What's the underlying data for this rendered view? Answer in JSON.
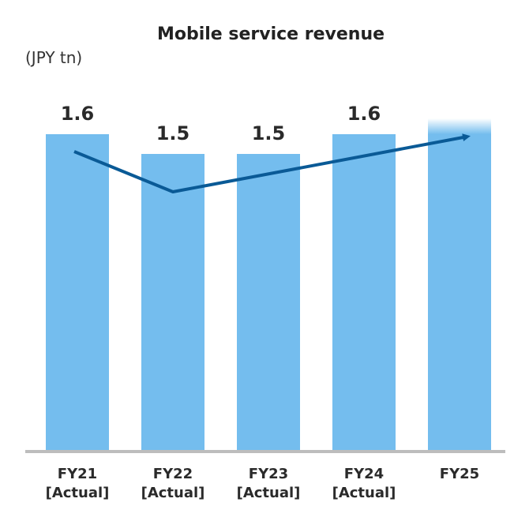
{
  "chart_data": {
    "type": "bar",
    "title": "Mobile service revenue",
    "unit_label": "(JPY tn)",
    "categories": [
      "FY21",
      "FY22",
      "FY23",
      "FY24",
      "FY25"
    ],
    "category_notes": [
      "[Actual]",
      "[Actual]",
      "[Actual]",
      "[Actual]",
      ""
    ],
    "values": [
      1.6,
      1.5,
      1.5,
      1.6,
      null
    ],
    "value_labels": [
      "1.6",
      "1.5",
      "1.5",
      "1.6",
      ""
    ],
    "trend_arrow": {
      "direction": "up",
      "color": "#0a5a96"
    },
    "ylim": [
      0,
      2.0
    ],
    "grid": false,
    "colors": {
      "bar": "#74bdee",
      "forecast_bar": "#74bdee",
      "arrow": "#0a5a96",
      "axis": "#bdbdbd"
    }
  }
}
